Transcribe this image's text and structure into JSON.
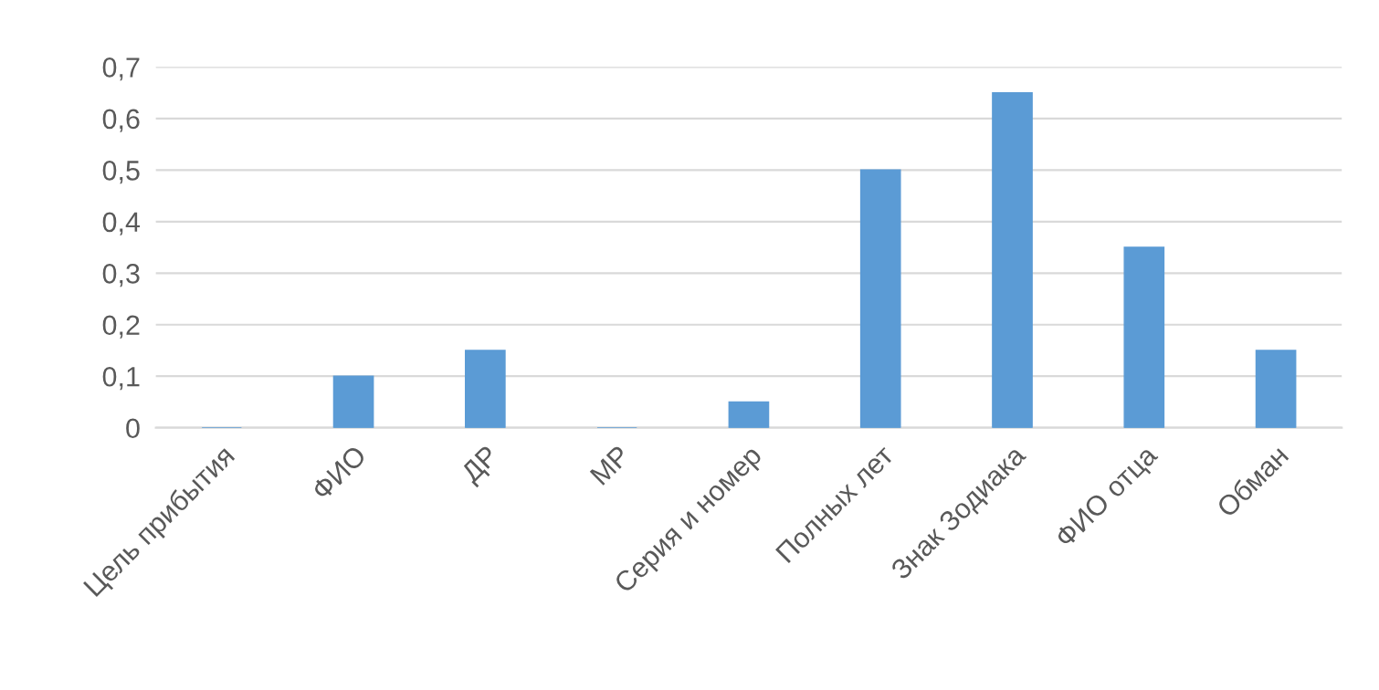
{
  "chart_data": {
    "type": "bar",
    "categories": [
      "Цель прибытия",
      "ФИО",
      "ДР",
      "МР",
      "Серия и номер",
      "Полных лет",
      "Знак Зодиака",
      "ФИО отца",
      "Обман"
    ],
    "values": [
      0,
      0.1,
      0.15,
      0,
      0.05,
      0.5,
      0.65,
      0.35,
      0.15
    ],
    "color": "#5b9bd5",
    "ylim": [
      0,
      0.7
    ],
    "yticks": [
      0,
      {
        "value": 0.1,
        "label": "0,1"
      },
      {
        "value": 0.2,
        "label": "0,2"
      },
      {
        "value": 0.3,
        "label": "0,3"
      },
      {
        "value": 0.4,
        "label": "0,4"
      },
      {
        "value": 0.5,
        "label": "0,5"
      },
      {
        "value": 0.6,
        "label": "0,6"
      },
      {
        "value": 0.7,
        "label": "0,7"
      }
    ],
    "grid": "y"
  }
}
